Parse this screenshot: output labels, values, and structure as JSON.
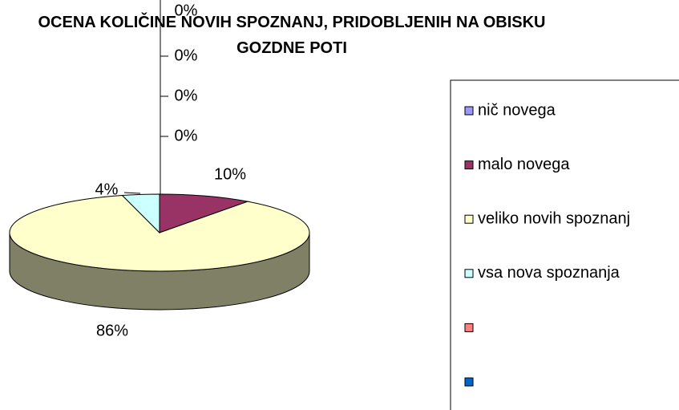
{
  "chart_data": {
    "type": "pie",
    "title": "OCENA KOLIČINE NOVIH SPOZNANJ, PRIDOBLJENIH NA OBISKU GOZDNE POTI",
    "categories": [
      "nič novega",
      "malo novega",
      "veliko novih spoznanj",
      "vsa nova spoznanja",
      null,
      null,
      null
    ],
    "values": [
      0,
      10,
      86,
      4,
      0,
      0,
      0
    ],
    "value_labels": [
      "0%",
      "10%",
      "86%",
      "4%",
      "0%",
      "0%",
      "0%"
    ],
    "colors": [
      "#9999ff",
      "#993366",
      "#ffffcc",
      "#ccffff",
      "#ff8080",
      "#0066cc",
      "#ccccff"
    ],
    "legend": "right"
  }
}
